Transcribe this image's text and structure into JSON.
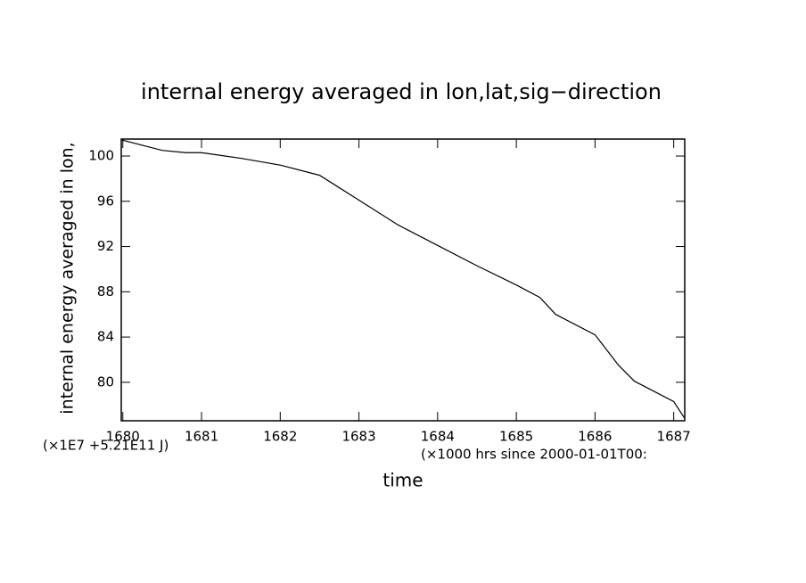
{
  "chart_data": {
    "type": "line",
    "title": "internal energy averaged in lon,lat,sig−direction",
    "y_label": "internal energy averaged in lon,",
    "x_label": "time",
    "y_units": "(×1E7 +5.21E11 J)",
    "x_units": "(×1000 hrs  since 2000-01-01T00:",
    "x": [
      1679.98,
      1680,
      1680.5,
      1680.8,
      1681,
      1681.5,
      1682,
      1682.5,
      1683,
      1683.5,
      1684,
      1684.5,
      1685,
      1685.3,
      1685.5,
      1686,
      1686.3,
      1686.5,
      1687,
      1687.14
    ],
    "series": [
      {
        "color": "#000000",
        "values": [
          101.5,
          101.4,
          100.5,
          100.3,
          100.3,
          99.8,
          99.2,
          98.3,
          96.1,
          93.9,
          92.1,
          90.3,
          88.6,
          87.5,
          86.0,
          84.2,
          81.5,
          80.1,
          78.3,
          76.8
        ]
      }
    ],
    "xlim": [
      1679.98,
      1687.14
    ],
    "ylim": [
      76.6,
      101.5
    ],
    "xticks": [
      1680,
      1681,
      1682,
      1683,
      1684,
      1685,
      1686,
      1687
    ],
    "yticks": [
      80,
      84,
      88,
      92,
      96,
      100
    ]
  }
}
